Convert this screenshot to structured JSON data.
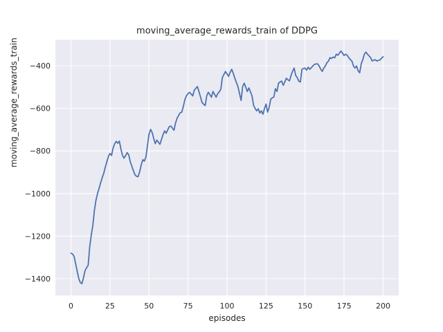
{
  "chart_data": {
    "type": "line",
    "title": "moving_average_rewards_train of DDPG",
    "xlabel": "episodes",
    "ylabel": "moving_average_rewards_train",
    "grid": true,
    "legend": null,
    "x_ticks": [
      0,
      25,
      50,
      75,
      100,
      125,
      150,
      175,
      200
    ],
    "y_ticks": [
      -400,
      -600,
      -800,
      -1000,
      -1200,
      -1400
    ],
    "xlim": [
      -10,
      210
    ],
    "ylim": [
      -1478.6,
      -278.6
    ],
    "colors": {
      "line": "#4c72b0",
      "plot_background": "#eaeaf2",
      "gridline": "#ffffff",
      "text": "#262626",
      "figure_background": "#ffffff"
    },
    "series": [
      {
        "name": "moving_average_rewards_train",
        "color": "#4c72b0",
        "x_start": 0,
        "x_step": 1,
        "values": [
          -1280,
          -1284,
          -1295,
          -1330,
          -1365,
          -1400,
          -1418,
          -1423,
          -1396,
          -1362,
          -1348,
          -1337,
          -1250,
          -1195,
          -1150,
          -1080,
          -1032,
          -1000,
          -976,
          -950,
          -926,
          -905,
          -876,
          -850,
          -826,
          -812,
          -821,
          -786,
          -766,
          -755,
          -764,
          -754,
          -791,
          -821,
          -834,
          -822,
          -808,
          -818,
          -851,
          -872,
          -893,
          -912,
          -919,
          -921,
          -898,
          -866,
          -841,
          -848,
          -829,
          -776,
          -722,
          -699,
          -713,
          -741,
          -766,
          -749,
          -759,
          -769,
          -746,
          -723,
          -706,
          -717,
          -701,
          -686,
          -683,
          -693,
          -703,
          -669,
          -646,
          -633,
          -621,
          -618,
          -591,
          -559,
          -541,
          -531,
          -525,
          -533,
          -542,
          -515,
          -506,
          -498,
          -521,
          -547,
          -573,
          -581,
          -587,
          -541,
          -525,
          -536,
          -548,
          -521,
          -534,
          -548,
          -531,
          -523,
          -511,
          -456,
          -441,
          -427,
          -439,
          -450,
          -431,
          -417,
          -436,
          -459,
          -479,
          -498,
          -531,
          -563,
          -498,
          -482,
          -501,
          -521,
          -504,
          -523,
          -541,
          -586,
          -601,
          -612,
          -602,
          -622,
          -612,
          -628,
          -601,
          -580,
          -618,
          -596,
          -557,
          -551,
          -547,
          -508,
          -521,
          -482,
          -476,
          -472,
          -492,
          -476,
          -459,
          -466,
          -471,
          -446,
          -426,
          -411,
          -446,
          -456,
          -473,
          -476,
          -417,
          -413,
          -411,
          -421,
          -407,
          -417,
          -409,
          -401,
          -394,
          -392,
          -391,
          -401,
          -416,
          -427,
          -411,
          -401,
          -386,
          -378,
          -362,
          -366,
          -359,
          -363,
          -346,
          -351,
          -341,
          -331,
          -341,
          -352,
          -346,
          -351,
          -362,
          -371,
          -378,
          -401,
          -411,
          -401,
          -424,
          -433,
          -391,
          -371,
          -346,
          -336,
          -346,
          -354,
          -362,
          -378,
          -374,
          -372,
          -378,
          -375,
          -373,
          -365,
          -358
        ]
      }
    ]
  }
}
